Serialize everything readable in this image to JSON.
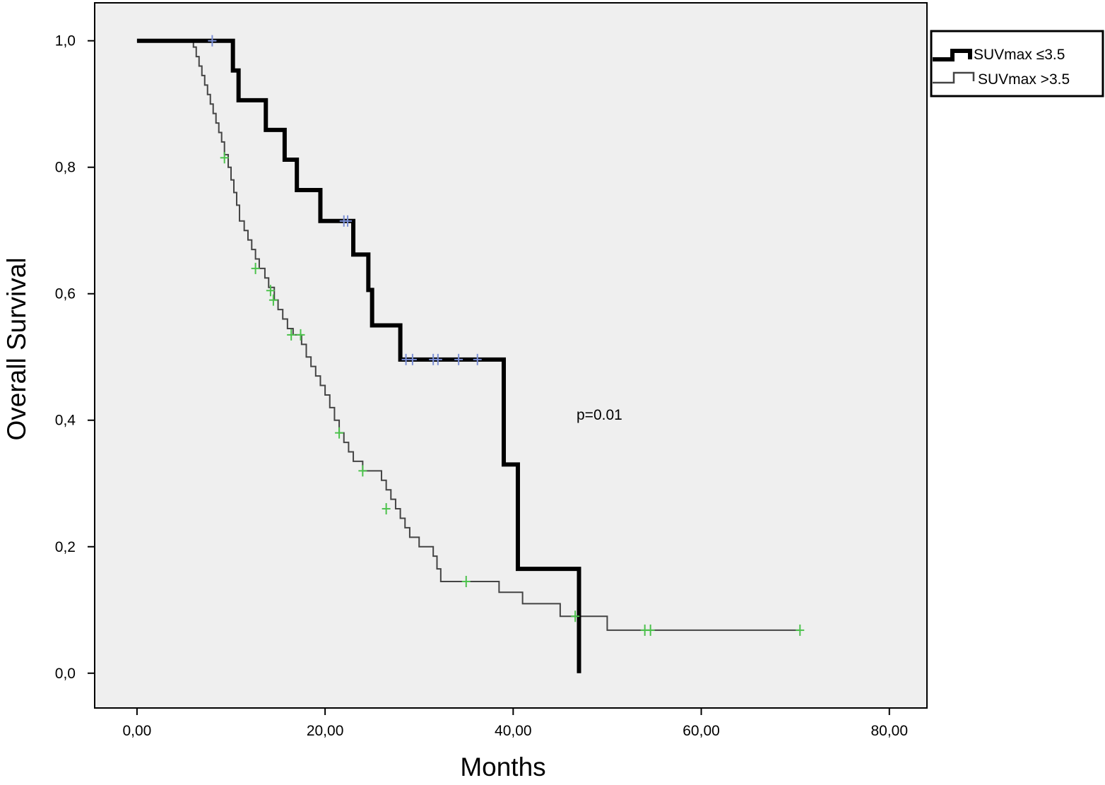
{
  "chart_data": {
    "type": "line",
    "subtype": "kaplan-meier",
    "xlabel": "Months",
    "ylabel": "Overall Survival",
    "xlim": [
      -4.5,
      84
    ],
    "ylim": [
      -0.055,
      1.06
    ],
    "xticks": [
      0,
      20,
      40,
      60,
      80
    ],
    "xtick_labels": [
      "0,00",
      "20,00",
      "40,00",
      "60,00",
      "80,00"
    ],
    "yticks": [
      0,
      0.2,
      0.4,
      0.6,
      0.8,
      1.0
    ],
    "ytick_labels": [
      "0,0",
      "0,2",
      "0,4",
      "0,6",
      "0,8",
      "1,0"
    ],
    "grid": false,
    "legend_position": "top-right outside",
    "annotation": "p=0.01",
    "colors": {
      "plot_bg": "#efefef",
      "line_low": "#000000",
      "line_high": "#444444",
      "censor_low": "#7b8fd6",
      "censor_high": "#4cc24c"
    },
    "series": [
      {
        "name": "SUVmax ≤3.5",
        "style": "thick",
        "steps": [
          [
            0,
            1.0
          ],
          [
            10.2,
            0.953
          ],
          [
            10.8,
            0.906
          ],
          [
            13.7,
            0.859
          ],
          [
            15.7,
            0.812
          ],
          [
            17.0,
            0.764
          ],
          [
            19.5,
            0.715
          ],
          [
            23.0,
            0.662
          ],
          [
            24.6,
            0.606
          ],
          [
            25.0,
            0.55
          ],
          [
            28.0,
            0.496
          ],
          [
            39.0,
            0.33
          ],
          [
            40.5,
            0.165
          ],
          [
            47.0,
            0.0
          ]
        ],
        "end_x": 47.0,
        "censored": [
          [
            8.0,
            1.0
          ],
          [
            22.0,
            0.715
          ],
          [
            22.4,
            0.715
          ],
          [
            28.6,
            0.496
          ],
          [
            29.3,
            0.496
          ],
          [
            31.5,
            0.496
          ],
          [
            32.0,
            0.496
          ],
          [
            34.2,
            0.496
          ],
          [
            36.2,
            0.496
          ]
        ]
      },
      {
        "name": "SUVmax >3.5",
        "style": "thin",
        "steps": [
          [
            0,
            1.0
          ],
          [
            6.0,
            0.99
          ],
          [
            6.3,
            0.975
          ],
          [
            6.6,
            0.96
          ],
          [
            6.9,
            0.945
          ],
          [
            7.2,
            0.93
          ],
          [
            7.5,
            0.915
          ],
          [
            7.8,
            0.9
          ],
          [
            8.1,
            0.885
          ],
          [
            8.4,
            0.87
          ],
          [
            8.7,
            0.855
          ],
          [
            9.0,
            0.84
          ],
          [
            9.3,
            0.82
          ],
          [
            9.7,
            0.8
          ],
          [
            10.0,
            0.78
          ],
          [
            10.3,
            0.76
          ],
          [
            10.6,
            0.74
          ],
          [
            10.9,
            0.715
          ],
          [
            11.4,
            0.7
          ],
          [
            11.8,
            0.685
          ],
          [
            12.2,
            0.67
          ],
          [
            12.6,
            0.655
          ],
          [
            13.0,
            0.64
          ],
          [
            13.6,
            0.625
          ],
          [
            14.0,
            0.61
          ],
          [
            14.6,
            0.59
          ],
          [
            15.0,
            0.575
          ],
          [
            15.5,
            0.56
          ],
          [
            16.0,
            0.545
          ],
          [
            16.6,
            0.535
          ],
          [
            17.5,
            0.52
          ],
          [
            18.0,
            0.5
          ],
          [
            18.5,
            0.485
          ],
          [
            19.0,
            0.47
          ],
          [
            19.5,
            0.455
          ],
          [
            20.0,
            0.44
          ],
          [
            20.5,
            0.42
          ],
          [
            21.0,
            0.4
          ],
          [
            21.5,
            0.38
          ],
          [
            22.0,
            0.365
          ],
          [
            22.5,
            0.35
          ],
          [
            23.0,
            0.335
          ],
          [
            24.0,
            0.32
          ],
          [
            26.0,
            0.305
          ],
          [
            26.5,
            0.29
          ],
          [
            27.0,
            0.275
          ],
          [
            27.5,
            0.26
          ],
          [
            28.0,
            0.245
          ],
          [
            28.5,
            0.23
          ],
          [
            29.0,
            0.215
          ],
          [
            30.0,
            0.2
          ],
          [
            31.5,
            0.185
          ],
          [
            31.9,
            0.165
          ],
          [
            32.3,
            0.145
          ],
          [
            38.5,
            0.128
          ],
          [
            41.0,
            0.11
          ],
          [
            45.0,
            0.09
          ],
          [
            50.0,
            0.068
          ]
        ],
        "end_x": 70.5,
        "censored": [
          [
            9.3,
            0.815
          ],
          [
            12.6,
            0.64
          ],
          [
            14.2,
            0.605
          ],
          [
            14.5,
            0.59
          ],
          [
            16.4,
            0.535
          ],
          [
            17.4,
            0.535
          ],
          [
            21.5,
            0.38
          ],
          [
            24.0,
            0.32
          ],
          [
            26.5,
            0.26
          ],
          [
            35.0,
            0.145
          ],
          [
            46.6,
            0.09
          ],
          [
            54.0,
            0.068
          ],
          [
            54.6,
            0.068
          ],
          [
            70.5,
            0.068
          ]
        ]
      }
    ]
  }
}
